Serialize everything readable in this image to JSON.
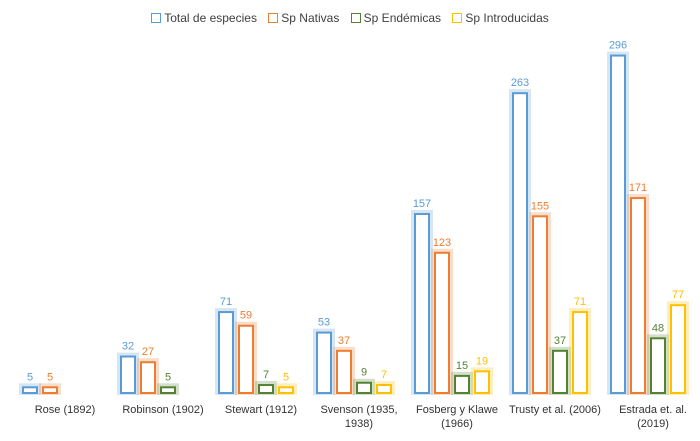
{
  "chart_data": {
    "type": "bar",
    "categories": [
      [
        "Rose (1892)"
      ],
      [
        "Robinson (1902)"
      ],
      [
        "Stewart (1912)"
      ],
      [
        "Svenson (1935,",
        "1938)"
      ],
      [
        "Fosberg y Klawe",
        "(1966)"
      ],
      [
        "Trusty et al. (2006)"
      ],
      [
        "Estrada et. al.",
        "(2019)"
      ]
    ],
    "series": [
      {
        "name": "Total de especies",
        "color": "#5B9BD5",
        "values": [
          5,
          32,
          71,
          53,
          157,
          263,
          296
        ]
      },
      {
        "name": "Sp Nativas",
        "color": "#ED7D31",
        "values": [
          5,
          27,
          59,
          37,
          123,
          155,
          171
        ]
      },
      {
        "name": "Sp Endémicas",
        "color": "#548235",
        "values": [
          null,
          5,
          7,
          9,
          15,
          37,
          48
        ]
      },
      {
        "name": "Sp Introducidas",
        "color": "#FFC000",
        "values": [
          null,
          null,
          5,
          7,
          19,
          71,
          77
        ]
      }
    ],
    "ylim": [
      0,
      300
    ],
    "legend_position": "top",
    "grid": false,
    "data_labels": true
  }
}
